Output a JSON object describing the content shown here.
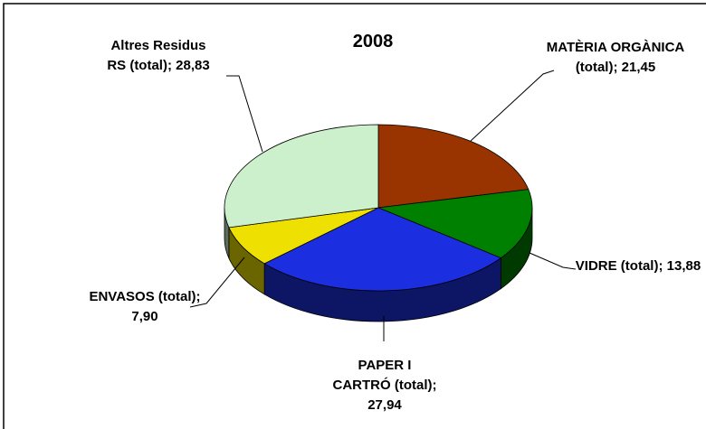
{
  "chart_data": {
    "type": "pie3d",
    "title": "2008",
    "categories": [
      "MATÈRIA ORGÀNICA (total);",
      "VIDRE (total);",
      "PAPER I CARTRÓ (total);",
      "ENVASOS (total);",
      "Altres Residus RS (total);"
    ],
    "values": [
      21.45,
      13.88,
      27.94,
      7.9,
      28.83
    ],
    "value_labels": [
      "21,45",
      "13,88",
      "27,94",
      "7,90",
      "28,83"
    ],
    "colors": [
      "#993300",
      "#008000",
      "#1c2fe0",
      "#eee000",
      "#ccf0cc"
    ]
  }
}
